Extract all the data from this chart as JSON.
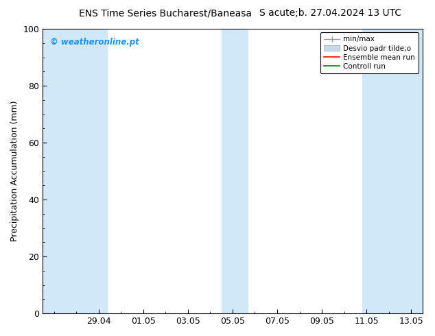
{
  "title_left": "ENS Time Series Bucharest/Baneasa",
  "title_right": "S acute;b. 27.04.2024 13 UTC",
  "ylabel": "Precipitation Accumulation (mm)",
  "ylim": [
    0,
    100
  ],
  "yticks": [
    0,
    20,
    40,
    60,
    80,
    100
  ],
  "xtick_labels": [
    "29.04",
    "01.05",
    "03.05",
    "05.05",
    "07.05",
    "09.05",
    "11.05",
    "13.05"
  ],
  "xtick_positions": [
    2,
    4,
    6,
    8,
    10,
    12,
    14,
    16
  ],
  "x_min": -0.5,
  "x_max": 16.5,
  "shaded_regions": [
    {
      "x_start": -0.5,
      "x_end": 2.4,
      "color": "#d0e8f8"
    },
    {
      "x_start": 7.5,
      "x_end": 8.7,
      "color": "#d0e8f8"
    },
    {
      "x_start": 13.8,
      "x_end": 16.5,
      "color": "#d0e8f8"
    }
  ],
  "watermark_text": "© weatheronline.pt",
  "watermark_color": "#1e90ff",
  "legend_labels": [
    "min/max",
    "Desvio padr tilde;o",
    "Ensemble mean run",
    "Controll run"
  ],
  "legend_minmax_color": "#999999",
  "legend_desvio_color": "#c8daea",
  "legend_ensemble_color": "#ff0000",
  "legend_control_color": "#008000",
  "border_color": "#000000",
  "tick_color": "#000000",
  "font_size": 9,
  "title_font_size": 10,
  "watermark_font_size": 8.5
}
